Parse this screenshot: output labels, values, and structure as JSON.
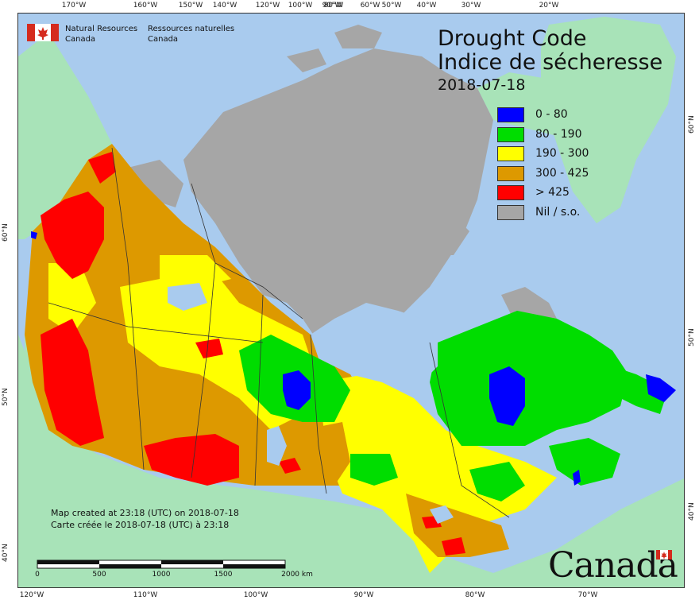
{
  "header": {
    "org_en_1": "Natural Resources",
    "org_en_2": "Canada",
    "org_fr_1": "Ressources naturelles",
    "org_fr_2": "Canada"
  },
  "title": {
    "line1": "Drought Code",
    "line2": "Indice de sécheresse",
    "date": "2018-07-18"
  },
  "legend": [
    {
      "label": "0 - 80",
      "color": "#0000ff"
    },
    {
      "label": "80 - 190",
      "color": "#00dd00"
    },
    {
      "label": "190 - 300",
      "color": "#ffff00"
    },
    {
      "label": "300 - 425",
      "color": "#dd9900"
    },
    {
      "label": "> 425",
      "color": "#ff0000"
    },
    {
      "label": "Nil / s.o.",
      "color": "#a6a6a6"
    }
  ],
  "credits": {
    "en": "Map created at 23:18 (UTC) on 2018-07-18",
    "fr": "Carte créée le 2018-07-18 (UTC) à 23:18"
  },
  "scale": {
    "labels": [
      "0",
      "500",
      "1000",
      "1500",
      "2000 km"
    ]
  },
  "wordmark": "Canada",
  "graticule": {
    "top": [
      "170°W",
      "160°W",
      "150°W",
      "140°W",
      "120°W",
      "100°W",
      "90°W",
      "80°W",
      "60°W",
      "50°W",
      "40°W",
      "30°W",
      "20°W"
    ],
    "bottom": [
      "120°W",
      "110°W",
      "100°W",
      "90°W",
      "80°W",
      "70°W"
    ],
    "left": [
      "60°N",
      "50°N",
      "40°N"
    ],
    "right": [
      "60°N",
      "50°N",
      "40°N"
    ]
  }
}
